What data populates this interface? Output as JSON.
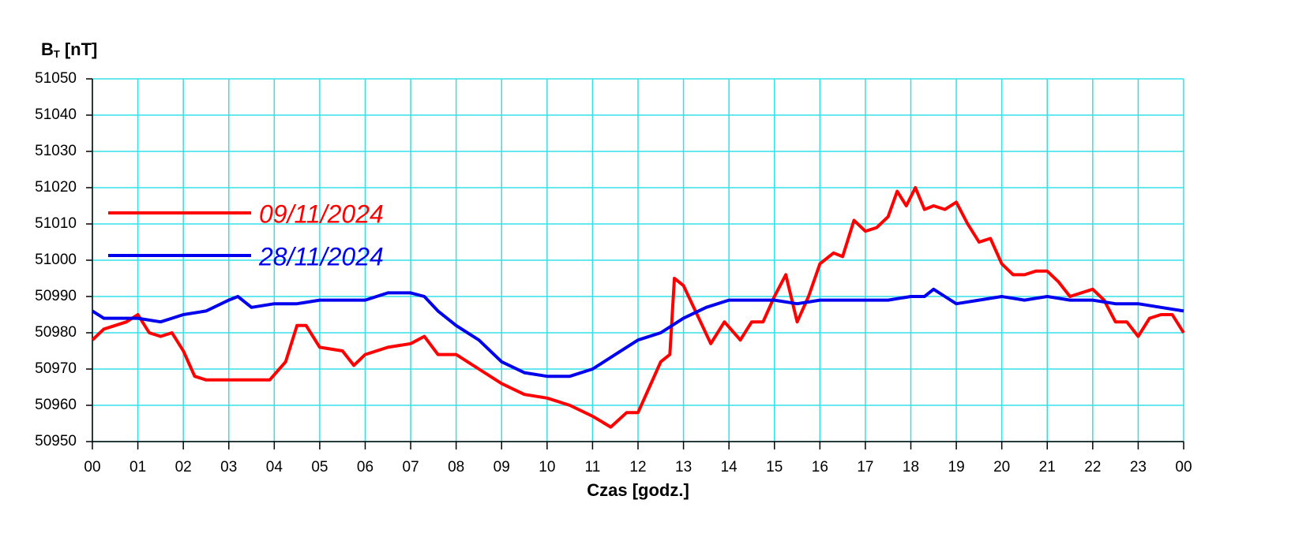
{
  "chart_data": {
    "type": "line",
    "y_label": "B",
    "y_label_sub": "T",
    "y_label_unit": "[nT]",
    "x_label": "Czas [godz.]",
    "xlim": [
      0,
      24
    ],
    "xticks": [
      {
        "value": 0,
        "label": "00"
      },
      {
        "value": 1,
        "label": "01"
      },
      {
        "value": 2,
        "label": "02"
      },
      {
        "value": 3,
        "label": "03"
      },
      {
        "value": 4,
        "label": "04"
      },
      {
        "value": 5,
        "label": "05"
      },
      {
        "value": 6,
        "label": "06"
      },
      {
        "value": 7,
        "label": "07"
      },
      {
        "value": 8,
        "label": "08"
      },
      {
        "value": 9,
        "label": "09"
      },
      {
        "value": 10,
        "label": "10"
      },
      {
        "value": 11,
        "label": "11"
      },
      {
        "value": 12,
        "label": "12"
      },
      {
        "value": 13,
        "label": "13"
      },
      {
        "value": 14,
        "label": "14"
      },
      {
        "value": 15,
        "label": "15"
      },
      {
        "value": 16,
        "label": "16"
      },
      {
        "value": 17,
        "label": "17"
      },
      {
        "value": 18,
        "label": "18"
      },
      {
        "value": 19,
        "label": "19"
      },
      {
        "value": 20,
        "label": "20"
      },
      {
        "value": 21,
        "label": "21"
      },
      {
        "value": 22,
        "label": "22"
      },
      {
        "value": 23,
        "label": "23"
      },
      {
        "value": 24,
        "label": "00"
      }
    ],
    "ylim": [
      50950,
      51050
    ],
    "yticks": [
      50950,
      50960,
      50970,
      50980,
      50990,
      51000,
      51010,
      51020,
      51030,
      51040,
      51050
    ],
    "grid": true,
    "grid_color": "#33e0e6",
    "series": [
      {
        "name": "09/11/2024",
        "color": "#ff0000",
        "x": [
          0,
          0.25,
          0.5,
          0.75,
          1,
          1.25,
          1.5,
          1.75,
          2,
          2.25,
          2.5,
          3,
          3.5,
          3.9,
          4.25,
          4.5,
          4.7,
          5,
          5.5,
          5.75,
          6,
          6.5,
          7,
          7.3,
          7.6,
          8,
          8.5,
          9,
          9.5,
          10,
          10.5,
          11,
          11.4,
          11.75,
          12,
          12.25,
          12.5,
          12.7,
          12.8,
          13,
          13.3,
          13.6,
          13.9,
          14.25,
          14.5,
          14.75,
          15,
          15.25,
          15.5,
          15.75,
          16,
          16.3,
          16.5,
          16.75,
          17,
          17.25,
          17.5,
          17.7,
          17.9,
          18.1,
          18.3,
          18.5,
          18.75,
          19,
          19.25,
          19.5,
          19.75,
          20,
          20.25,
          20.5,
          20.75,
          21,
          21.25,
          21.5,
          21.75,
          22,
          22.25,
          22.5,
          22.75,
          23,
          23.25,
          23.5,
          23.75,
          24
        ],
        "values": [
          50978,
          50981,
          50982,
          50983,
          50985,
          50980,
          50979,
          50980,
          50975,
          50968,
          50967,
          50967,
          50967,
          50967,
          50972,
          50982,
          50982,
          50976,
          50975,
          50971,
          50974,
          50976,
          50977,
          50979,
          50974,
          50974,
          50970,
          50966,
          50963,
          50962,
          50960,
          50957,
          50954,
          50958,
          50958,
          50965,
          50972,
          50974,
          50995,
          50993,
          50985,
          50977,
          50983,
          50978,
          50983,
          50983,
          50990,
          50996,
          50983,
          50990,
          50999,
          51002,
          51001,
          51011,
          51008,
          51009,
          51012,
          51019,
          51015,
          51020,
          51014,
          51015,
          51014,
          51016,
          51010,
          51005,
          51006,
          50999,
          50996,
          50996,
          50997,
          50997,
          50994,
          50990,
          50991,
          50992,
          50989,
          50983,
          50983,
          50979,
          50984,
          50985,
          50985,
          50980
        ]
      },
      {
        "name": "28/11/2024",
        "color": "#0000ee",
        "x": [
          0,
          0.25,
          0.5,
          1,
          1.5,
          1.75,
          2,
          2.5,
          3,
          3.2,
          3.5,
          4,
          4.5,
          5,
          5.5,
          6,
          6.5,
          7,
          7.3,
          7.6,
          8,
          8.5,
          9,
          9.5,
          10,
          10.5,
          11,
          11.5,
          12,
          12.5,
          13,
          13.5,
          14,
          14.5,
          15,
          15.5,
          16,
          16.5,
          17,
          17.5,
          18,
          18.3,
          18.5,
          18.75,
          19,
          19.5,
          20,
          20.5,
          21,
          21.5,
          22,
          22.5,
          23,
          23.5,
          24
        ],
        "values": [
          50986,
          50984,
          50984,
          50984,
          50983,
          50984,
          50985,
          50986,
          50989,
          50990,
          50987,
          50988,
          50988,
          50989,
          50989,
          50989,
          50991,
          50991,
          50990,
          50986,
          50982,
          50978,
          50972,
          50969,
          50968,
          50968,
          50970,
          50974,
          50978,
          50980,
          50984,
          50987,
          50989,
          50989,
          50989,
          50988,
          50989,
          50989,
          50989,
          50989,
          50990,
          50990,
          50992,
          50990,
          50988,
          50989,
          50990,
          50989,
          50990,
          50989,
          50989,
          50988,
          50988,
          50987,
          50986
        ]
      }
    ]
  }
}
